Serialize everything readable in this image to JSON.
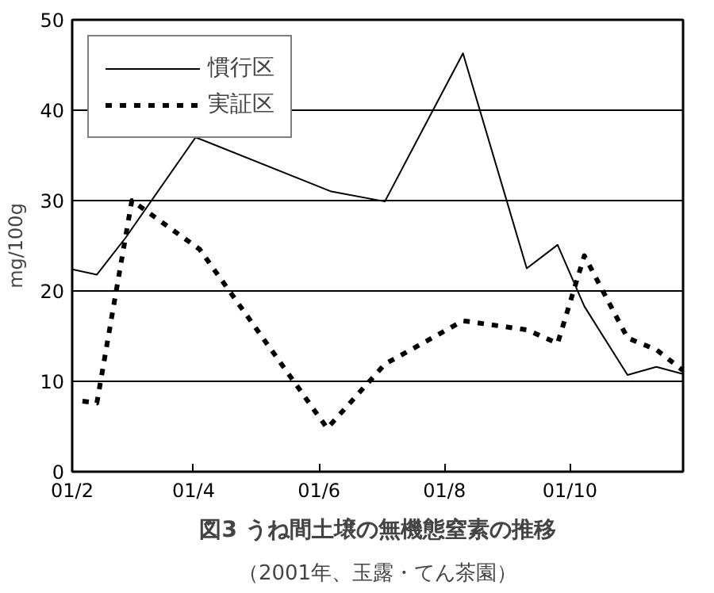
{
  "chart_data": {
    "type": "line",
    "title": "図3 うね間土壌の無機態窒素の推移",
    "subtitle": "（2001年、玉露・てん茶園）",
    "ylabel": "mg/100g",
    "xlim": [
      "2001-02-01",
      "2001-11-25"
    ],
    "xticks": [
      {
        "value": "2001-02-01",
        "label": "01/2"
      },
      {
        "value": "2001-04-01",
        "label": "01/4"
      },
      {
        "value": "2001-06-01",
        "label": "01/6"
      },
      {
        "value": "2001-08-01",
        "label": "01/8"
      },
      {
        "value": "2001-10-01",
        "label": "01/10"
      }
    ],
    "ylim": [
      0,
      50
    ],
    "yticks": [
      0,
      10,
      20,
      30,
      40,
      50
    ],
    "grid": "y",
    "legend": "top left",
    "series": [
      {
        "name": "慣行区",
        "color": "#000000",
        "line_style": "solid",
        "x": [
          "2001-02-01",
          "2001-02-13",
          "2001-02-27",
          "2001-04-02",
          "2001-06-07",
          "2001-07-03",
          "2001-08-10",
          "2001-09-10",
          "2001-09-25",
          "2001-10-08",
          "2001-10-29",
          "2001-11-12",
          "2001-11-25"
        ],
        "values": [
          22.4,
          21.8,
          25.9,
          37.0,
          31.0,
          29.9,
          46.3,
          22.5,
          25.1,
          18.3,
          10.7,
          11.6,
          10.8
        ]
      },
      {
        "name": "実証区",
        "color": "#000000",
        "line_style": "dashed",
        "x": [
          "2001-02-06",
          "2001-02-13",
          "2001-03-02",
          "2001-04-04",
          "2001-06-05",
          "2001-07-03",
          "2001-08-10",
          "2001-09-10",
          "2001-09-25",
          "2001-10-08",
          "2001-10-29",
          "2001-11-12",
          "2001-11-25"
        ],
        "values": [
          7.8,
          7.6,
          30.0,
          24.6,
          4.8,
          11.9,
          16.7,
          15.7,
          14.2,
          23.9,
          14.8,
          13.5,
          11.2
        ]
      }
    ]
  }
}
